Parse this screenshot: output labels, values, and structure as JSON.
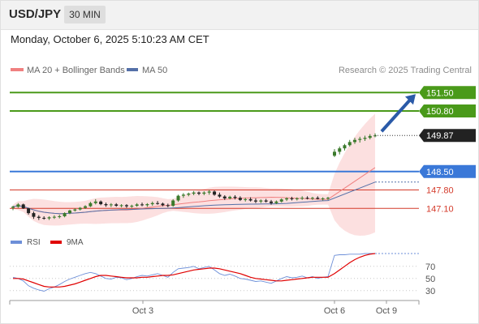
{
  "header": {
    "symbol": "USD/JPY",
    "timeframe": "30 MIN"
  },
  "timestamp": "Monday, October 6, 2025 5:10:23 AM CET",
  "legend": {
    "ma20_label": "MA 20 + Bollinger Bands",
    "ma50_label": "MA 50",
    "credit": "Research © 2025 Trading Central"
  },
  "colors": {
    "resistance": "#4a9a1a",
    "support": "#3a78d8",
    "level_red": "#d43a2a",
    "ma20": "#f08080",
    "ma50": "#5470a8",
    "band_fill": "#fbd6d6",
    "candle_up": "#3b7a2c",
    "candle_down": "#222222",
    "arrow": "#2a5aa8",
    "rsi": "#6d8fd8",
    "rsi_ma": "#e00000"
  },
  "rsi_legend": {
    "rsi_label": "RSI",
    "ma_label": "9MA"
  },
  "chart_data": [
    {
      "type": "candlestick",
      "title": "USD/JPY 30 MIN",
      "ylim": [
        146.4,
        152.0
      ],
      "x_ticks": [
        "Oct 3",
        "Oct 6",
        "Oct 9"
      ],
      "current_price": {
        "value": 149.87,
        "label": "149.87"
      },
      "levels": [
        {
          "value": 151.5,
          "label": "151.50",
          "role": "resistance"
        },
        {
          "value": 150.8,
          "label": "150.80",
          "role": "resistance"
        },
        {
          "value": 148.5,
          "label": "148.50",
          "role": "support"
        },
        {
          "value": 147.8,
          "label": "147.80",
          "role": "level"
        },
        {
          "value": 147.1,
          "label": "147.10",
          "role": "level"
        }
      ],
      "forecast_arrow": {
        "from": 149.9,
        "to": 151.5
      },
      "projected_ma20_end": 148.65,
      "projected_ma50_end": 148.1,
      "candles": [
        [
          147.12,
          147.2,
          147.03,
          147.16
        ],
        [
          147.16,
          147.3,
          147.12,
          147.25
        ],
        [
          147.25,
          147.28,
          147.08,
          147.1
        ],
        [
          147.1,
          147.12,
          146.86,
          146.92
        ],
        [
          146.92,
          146.98,
          146.7,
          146.78
        ],
        [
          146.78,
          146.84,
          146.66,
          146.74
        ],
        [
          146.74,
          146.8,
          146.67,
          146.72
        ],
        [
          146.72,
          146.8,
          146.66,
          146.76
        ],
        [
          146.76,
          146.84,
          146.7,
          146.78
        ],
        [
          146.78,
          146.86,
          146.72,
          146.8
        ],
        [
          146.8,
          146.95,
          146.76,
          146.92
        ],
        [
          146.92,
          147.05,
          146.88,
          147.02
        ],
        [
          147.02,
          147.1,
          146.98,
          147.06
        ],
        [
          147.06,
          147.15,
          147.02,
          147.12
        ],
        [
          147.12,
          147.22,
          147.08,
          147.18
        ],
        [
          147.18,
          147.35,
          147.15,
          147.3
        ],
        [
          147.3,
          147.45,
          147.25,
          147.36
        ],
        [
          147.36,
          147.4,
          147.22,
          147.26
        ],
        [
          147.26,
          147.32,
          147.16,
          147.22
        ],
        [
          147.22,
          147.3,
          147.15,
          147.25
        ],
        [
          147.25,
          147.3,
          147.16,
          147.2
        ],
        [
          147.2,
          147.26,
          147.14,
          147.22
        ],
        [
          147.22,
          147.26,
          147.12,
          147.18
        ],
        [
          147.18,
          147.24,
          147.12,
          147.2
        ],
        [
          147.2,
          147.3,
          147.16,
          147.25
        ],
        [
          147.25,
          147.32,
          147.18,
          147.22
        ],
        [
          147.22,
          147.3,
          147.16,
          147.26
        ],
        [
          147.26,
          147.36,
          147.2,
          147.3
        ],
        [
          147.3,
          147.38,
          147.24,
          147.28
        ],
        [
          147.28,
          147.32,
          147.18,
          147.22
        ],
        [
          147.22,
          147.28,
          147.14,
          147.2
        ],
        [
          147.2,
          147.45,
          147.16,
          147.4
        ],
        [
          147.4,
          147.62,
          147.35,
          147.58
        ],
        [
          147.58,
          147.68,
          147.5,
          147.62
        ],
        [
          147.62,
          147.7,
          147.56,
          147.66
        ],
        [
          147.66,
          147.76,
          147.6,
          147.7
        ],
        [
          147.7,
          147.74,
          147.6,
          147.66
        ],
        [
          147.66,
          147.75,
          147.6,
          147.7
        ],
        [
          147.7,
          147.8,
          147.62,
          147.74
        ],
        [
          147.74,
          147.78,
          147.58,
          147.62
        ],
        [
          147.62,
          147.7,
          147.5,
          147.55
        ],
        [
          147.55,
          147.6,
          147.42,
          147.48
        ],
        [
          147.48,
          147.58,
          147.44,
          147.54
        ],
        [
          147.54,
          147.6,
          147.44,
          147.5
        ],
        [
          147.5,
          147.56,
          147.38,
          147.42
        ],
        [
          147.42,
          147.5,
          147.36,
          147.45
        ],
        [
          147.45,
          147.52,
          147.36,
          147.4
        ],
        [
          147.4,
          147.48,
          147.3,
          147.36
        ],
        [
          147.36,
          147.44,
          147.3,
          147.4
        ],
        [
          147.4,
          147.46,
          147.32,
          147.36
        ],
        [
          147.36,
          147.42,
          147.24,
          147.3
        ],
        [
          147.3,
          147.4,
          147.26,
          147.36
        ],
        [
          147.36,
          147.48,
          147.32,
          147.44
        ],
        [
          147.44,
          147.52,
          147.38,
          147.48
        ],
        [
          147.48,
          147.54,
          147.4,
          147.45
        ],
        [
          147.45,
          147.52,
          147.4,
          147.48
        ],
        [
          147.48,
          147.56,
          147.42,
          147.5
        ],
        [
          147.5,
          147.56,
          147.44,
          147.48
        ],
        [
          147.48,
          147.54,
          147.42,
          147.5
        ],
        [
          147.5,
          147.56,
          147.44,
          147.46
        ],
        [
          147.46,
          147.52,
          147.4,
          147.48
        ],
        [
          147.48,
          147.54,
          147.42,
          147.5
        ],
        [
          149.1,
          149.35,
          149.05,
          149.25
        ],
        [
          149.25,
          149.45,
          149.15,
          149.38
        ],
        [
          149.38,
          149.55,
          149.3,
          149.5
        ],
        [
          149.5,
          149.7,
          149.45,
          149.62
        ],
        [
          149.62,
          149.78,
          149.55,
          149.7
        ],
        [
          149.7,
          149.82,
          149.6,
          149.74
        ],
        [
          149.74,
          149.86,
          149.66,
          149.78
        ],
        [
          149.78,
          149.92,
          149.72,
          149.85
        ],
        [
          149.85,
          149.95,
          149.8,
          149.87
        ]
      ]
    },
    {
      "type": "line",
      "title": "RSI",
      "ylim": [
        15,
        95
      ],
      "y_ticks": [
        30,
        50,
        70
      ],
      "series": [
        {
          "name": "RSI",
          "values": [
            52,
            50,
            46,
            38,
            34,
            31,
            29,
            33,
            36,
            40,
            45,
            49,
            52,
            55,
            58,
            60,
            58,
            54,
            50,
            49,
            52,
            51,
            48,
            50,
            53,
            55,
            54,
            56,
            58,
            55,
            52,
            60,
            66,
            67,
            68,
            70,
            66,
            68,
            70,
            64,
            58,
            55,
            57,
            54,
            50,
            49,
            47,
            45,
            46,
            44,
            42,
            46,
            50,
            53,
            51,
            52,
            54,
            51,
            53,
            50,
            52,
            53,
            88,
            89,
            89,
            90,
            90,
            90,
            91,
            91,
            91
          ]
        },
        {
          "name": "9MA",
          "values": [
            50,
            50,
            49,
            46,
            43,
            40,
            37,
            36,
            36,
            36,
            37,
            39,
            41,
            44,
            47,
            50,
            53,
            55,
            55,
            54,
            53,
            52,
            51,
            51,
            51,
            52,
            52,
            53,
            54,
            55,
            55,
            56,
            58,
            60,
            62,
            64,
            65,
            66,
            67,
            67,
            66,
            64,
            62,
            60,
            58,
            55,
            52,
            50,
            49,
            48,
            47,
            46,
            46,
            47,
            48,
            49,
            50,
            51,
            52,
            52,
            52,
            52,
            58,
            64,
            70,
            76,
            81,
            85,
            88,
            90,
            91
          ]
        }
      ]
    }
  ]
}
